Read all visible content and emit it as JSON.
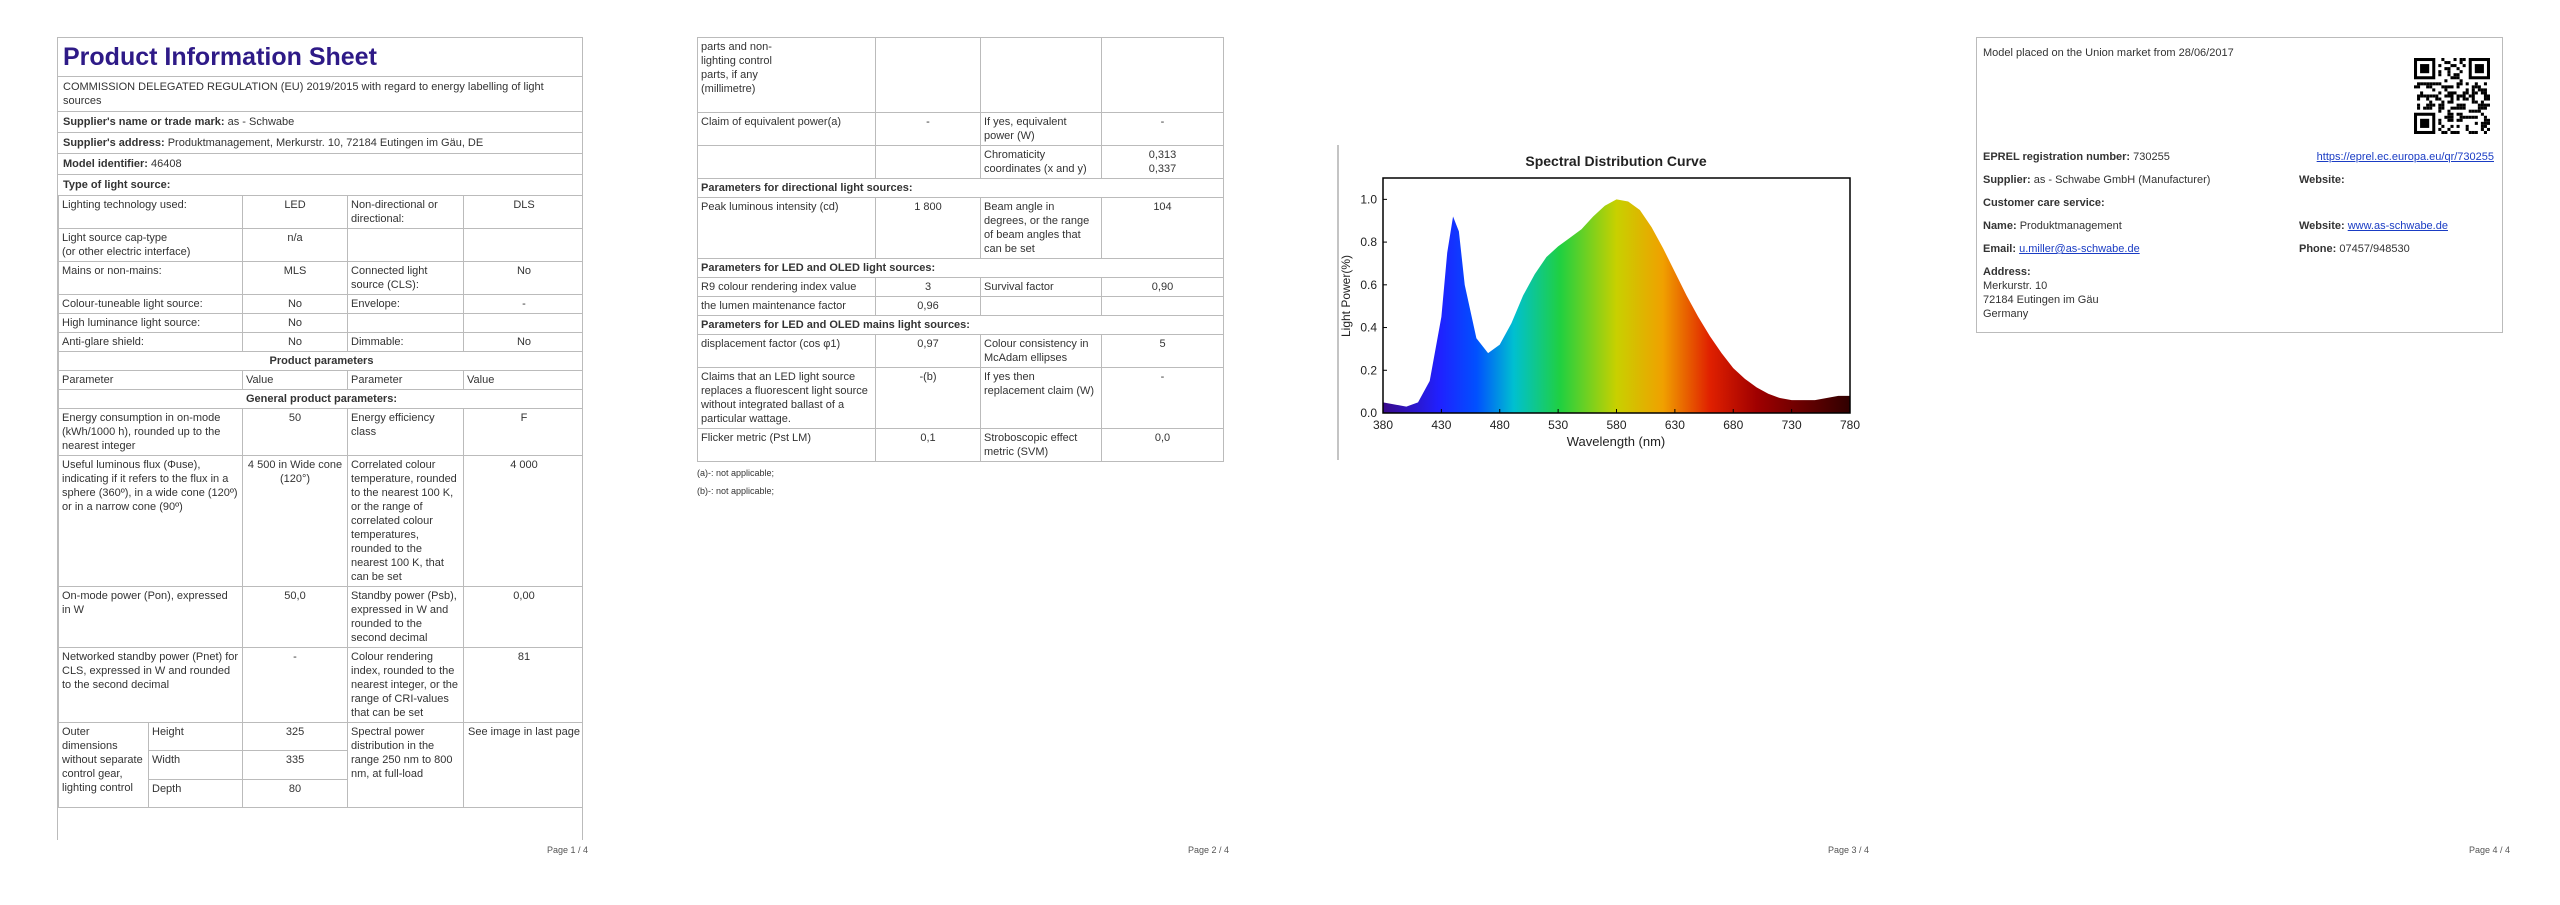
{
  "p1": {
    "title": "Product Information Sheet",
    "regulation": "COMMISSION DELEGATED REGULATION (EU) 2019/2015 with regard to energy labelling of light sources",
    "supplier": [
      "Supplier's name or trade mark:",
      "as - Schwabe"
    ],
    "address": [
      "Supplier's address:",
      "Produktmanagement, Merkurstr. 10, 72184 Eutingen im Gäu, DE"
    ],
    "model": [
      "Model identifier:",
      "46408"
    ],
    "type_heading": "Type of light source:",
    "rows": [
      [
        "Lighting technology used:",
        "LED",
        "Non-directional or directional:",
        "DLS"
      ],
      [
        "Light source cap-type",
        "(or other electric interface)",
        "n/a"
      ],
      [
        "Mains or non-mains:",
        "MLS",
        "Connected light source (CLS):",
        "No"
      ],
      [
        "Colour-tuneable light source:",
        "No",
        "Envelope:",
        "-"
      ],
      [
        "High luminance light source:",
        "No"
      ],
      [
        "Anti-glare shield:",
        "No",
        "Dimmable:",
        "No"
      ]
    ],
    "product_parameters": "Product parameters",
    "header": [
      "Parameter",
      "Value",
      "Parameter",
      "Value"
    ],
    "general": "General product parameters:",
    "params": [
      [
        "Energy consumption in on-mode (kWh/1000 h), rounded up to the nearest integer",
        "50",
        "Energy efficiency class",
        "F"
      ],
      [
        "Useful luminous flux (Φuse), indicating if it refers to the flux in a sphere (360º), in a wide cone (120º) or in a narrow cone (90º)",
        "4 500 in Wide cone (120°)",
        "Correlated colour temperature, rounded to the nearest 100 K, or the range of correlated colour temperatures, rounded to the nearest 100 K, that can be set",
        "4 000"
      ],
      [
        "On-mode power (Pon), expressed in W",
        "50,0",
        "Standby power (Psb), expressed in W and rounded to the second decimal",
        "0,00"
      ],
      [
        "Networked standby power (Pnet) for CLS, expressed in W and rounded to the second decimal",
        "-",
        "Colour rendering index, rounded to the nearest integer, or the range of CRI-values that can be set",
        "81"
      ]
    ],
    "dims": {
      "label": "Outer dimensions without separate control gear, lighting control",
      "items": [
        [
          "Height",
          "325"
        ],
        [
          "Width",
          "335"
        ],
        [
          "Depth",
          "80"
        ]
      ],
      "spectral": "Spectral power distribution in the range 250 nm to 800 nm, at full-load",
      "spectral_value": "See image in last page"
    },
    "footer": "Page 1 / 4"
  },
  "p2": {
    "rows": [
      [
        "parts and non-lighting control parts, if any (millimetre)"
      ],
      [
        "Claim of equivalent power(a)",
        "-",
        "If yes, equivalent power (W)",
        "-"
      ],
      [
        "Chromaticity coordinates (x and y)",
        "0,313",
        "0,337"
      ]
    ],
    "directional": "Parameters for directional light sources:",
    "dir_rows": [
      [
        "Peak luminous intensity (cd)",
        "1 800",
        "Beam angle in degrees, or the range of beam angles that can be set",
        "104"
      ]
    ],
    "led": "Parameters for LED and OLED light sources:",
    "led_rows": [
      [
        "R9 colour rendering index value",
        "3",
        "Survival factor",
        "0,90"
      ],
      [
        "the lumen maintenance factor",
        "0,96"
      ]
    ],
    "mains": "Parameters for LED and OLED mains light sources:",
    "mains_rows": [
      [
        "displacement factor (cos φ1)",
        "0,97",
        "Colour consistency in McAdam ellipses",
        "5"
      ],
      [
        "Claims that an LED light source replaces a fluorescent light source without integrated ballast of a particular wattage.",
        "-(b)",
        "If yes then replacement claim (W)",
        "-"
      ],
      [
        "Flicker metric (Pst LM)",
        "0,1",
        "Stroboscopic effect metric (SVM)",
        "0,0"
      ]
    ],
    "notes": [
      "(a)-: not applicable;",
      "(b)-: not applicable;"
    ],
    "footer": "Page 2 / 4"
  },
  "chart_data": {
    "type": "area",
    "title": "Spectral Distribution Curve",
    "xlabel": "Wavelength (nm)",
    "ylabel": "Light Power(%)",
    "x": [
      380,
      390,
      400,
      410,
      420,
      430,
      435,
      440,
      445,
      450,
      460,
      470,
      480,
      490,
      500,
      510,
      520,
      530,
      540,
      550,
      560,
      570,
      580,
      590,
      600,
      610,
      620,
      630,
      640,
      650,
      660,
      670,
      680,
      690,
      700,
      710,
      720,
      730,
      740,
      750,
      760,
      770,
      780
    ],
    "values": [
      0.05,
      0.04,
      0.03,
      0.05,
      0.15,
      0.45,
      0.75,
      0.92,
      0.85,
      0.6,
      0.35,
      0.28,
      0.32,
      0.42,
      0.55,
      0.65,
      0.73,
      0.78,
      0.82,
      0.86,
      0.92,
      0.97,
      1.0,
      0.99,
      0.95,
      0.87,
      0.77,
      0.66,
      0.55,
      0.45,
      0.36,
      0.28,
      0.21,
      0.16,
      0.12,
      0.09,
      0.07,
      0.06,
      0.06,
      0.06,
      0.07,
      0.08,
      0.08
    ],
    "xlim": [
      380,
      780
    ],
    "ylim": [
      0,
      1.1
    ],
    "xticks": [
      380,
      430,
      480,
      530,
      580,
      630,
      680,
      730,
      780
    ],
    "yticks": [
      {
        "value": 0,
        "label": "0.0"
      },
      {
        "value": 0.2,
        "label": "0.2"
      },
      {
        "value": 0.4,
        "label": "0.4"
      },
      {
        "value": 0.6,
        "label": "0.6"
      },
      {
        "value": 0.8,
        "label": "0.8"
      },
      {
        "value": 1,
        "label": "1.0"
      }
    ]
  },
  "p3": {
    "footer": "Page 3 / 4"
  },
  "p4": {
    "market": "Model placed on the Union market from 28/06/2017",
    "eprel": [
      "EPREL registration number:",
      "730255"
    ],
    "eprel_link": "https://eprel.ec.europa.eu/qr/730255",
    "supplier": [
      "Supplier:",
      "as - Schwabe GmbH (Manufacturer)"
    ],
    "website_label": "Website:",
    "care": "Customer care service:",
    "name": [
      "Name:",
      "Produktmanagement"
    ],
    "website": [
      "Website:",
      "www.as-schwabe.de"
    ],
    "email": [
      "Email:",
      "u.miller@as-schwabe.de"
    ],
    "phone": [
      "Phone:",
      "07457/948530"
    ],
    "address_label": "Address:",
    "address": [
      "Merkurstr. 10",
      "72184 Eutingen im Gäu",
      "Germany"
    ],
    "footer": "Page 4 / 4"
  }
}
